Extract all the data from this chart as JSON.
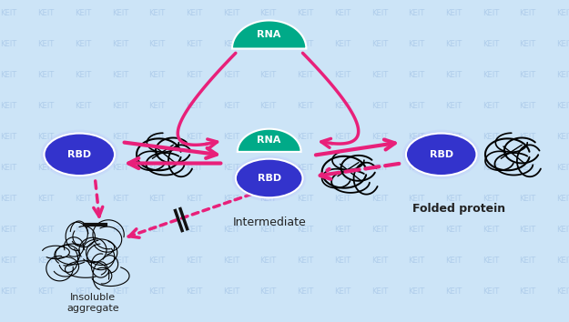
{
  "background_color": "#cce4f7",
  "watermark_color": "#aac8e8",
  "watermark_text": "KEIT",
  "rbd_color_left": "#3333cc",
  "rbd_color_center": "#3333cc",
  "rbd_color_right": "#3333cc",
  "rbd_text_color": "#ffffff",
  "rna_color": "#00aa88",
  "rna_text_color": "#ffffff",
  "arrow_color": "#e8207a",
  "text_color": "#222222",
  "label_intermediate": "Intermediate",
  "label_folded": "Folded protein",
  "label_insoluble": "Insoluble\naggregate",
  "fig_w": 6.25,
  "fig_h": 3.54,
  "dpi": 100
}
